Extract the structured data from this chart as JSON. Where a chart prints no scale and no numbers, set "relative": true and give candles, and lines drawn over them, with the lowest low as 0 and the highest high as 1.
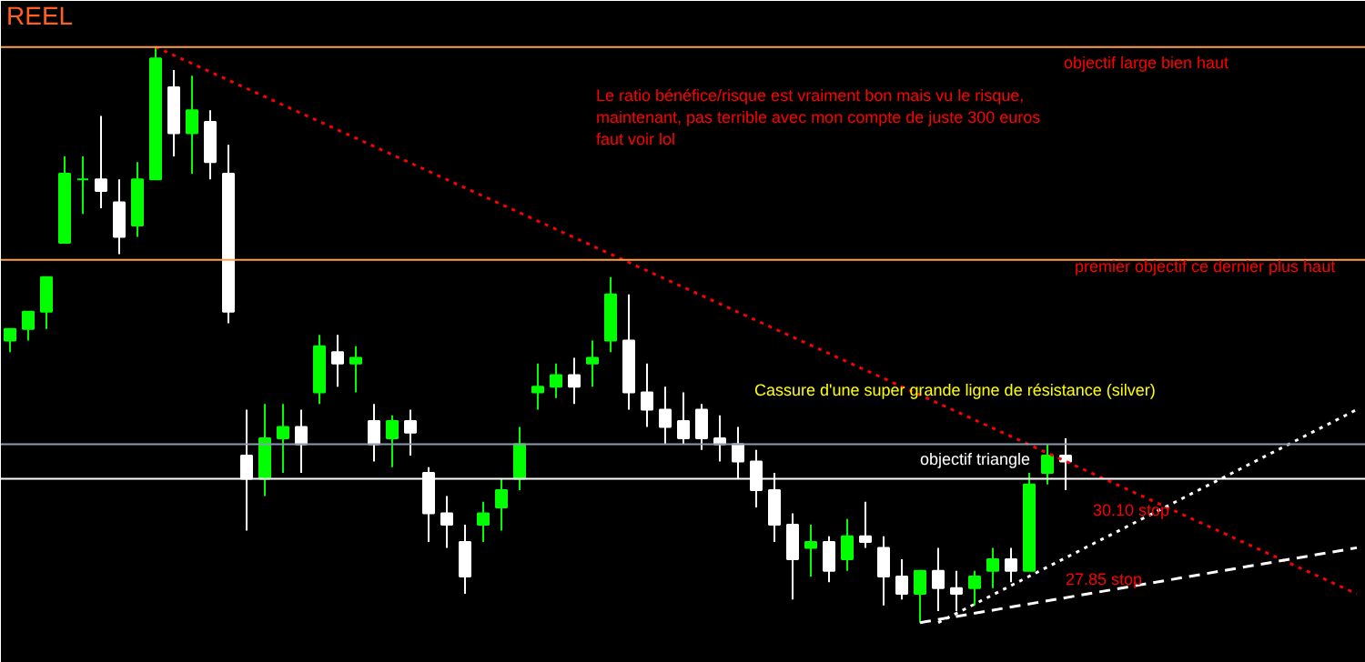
{
  "chart_data": {
    "type": "candlestick",
    "relative": true,
    "colors": [
      "#00ff00",
      "#00ff00",
      "#00ff00",
      "#00ff00",
      "#00ff00",
      "#ffffff",
      "#ffffff",
      "#00ff00",
      "#00ff00",
      "#ffffff",
      "#00ff00",
      "#ffffff",
      "#ffffff",
      "#ffffff",
      "#00ff00",
      "#00ff00",
      "#ffffff",
      "#00ff00",
      "#ffffff",
      "#00ff00",
      "#ffffff",
      "#00ff00",
      "#ffffff",
      "#ffffff",
      "#ffffff",
      "#ffffff",
      "#00ff00",
      "#00ff00",
      "#00ff00",
      "#00ff00",
      "#00ff00",
      "#ffffff",
      "#00ff00",
      "#00ff00",
      "#ffffff",
      "#ffffff",
      "#ffffff",
      "#ffffff",
      "#ffffff",
      "#ffffff",
      "#ffffff",
      "#ffffff",
      "#ffffff",
      "#ffffff",
      "#00ff00",
      "#ffffff",
      "#00ff00",
      "#ffffff",
      "#ffffff",
      "#ffffff",
      "#00ff00",
      "#ffffff",
      "#ffffff",
      "#00ff00",
      "#00ff00",
      "#ffffff",
      "#00ff00",
      "#00ff00",
      "#ffffff",
      null,
      null,
      null,
      null,
      null,
      null,
      null,
      null,
      null,
      null,
      null,
      null,
      null,
      null,
      null,
      null
    ],
    "categories": [
      null,
      null,
      null,
      null,
      null,
      null,
      null,
      null,
      null,
      null,
      null,
      null,
      null,
      null,
      null,
      null,
      null,
      null,
      null,
      null,
      null,
      null,
      null,
      null,
      null,
      null,
      null,
      null,
      null,
      null,
      null,
      null,
      null,
      null,
      null,
      null,
      null,
      null,
      null,
      null,
      null,
      null,
      null,
      null,
      null,
      null,
      null,
      null,
      null,
      null,
      null,
      null,
      null,
      null,
      null,
      null,
      null,
      null,
      null,
      null,
      null,
      null,
      null,
      null,
      null,
      null,
      null,
      null,
      null,
      null,
      null,
      null,
      null,
      null,
      null
    ],
    "ohlc": [
      [
        0.49,
        0.51,
        0.47,
        0.51
      ],
      [
        0.51,
        0.54,
        0.49,
        0.54
      ],
      [
        0.54,
        0.6,
        0.51,
        0.6
      ],
      [
        0.66,
        0.81,
        0.66,
        0.78
      ],
      [
        0.77,
        0.81,
        0.71,
        0.77
      ],
      [
        0.77,
        0.88,
        0.72,
        0.75
      ],
      [
        0.73,
        0.77,
        0.64,
        0.67
      ],
      [
        0.69,
        0.8,
        0.67,
        0.77
      ],
      [
        0.77,
        1.0,
        0.77,
        0.98
      ],
      [
        0.93,
        0.96,
        0.81,
        0.85
      ],
      [
        0.85,
        0.95,
        0.78,
        0.89
      ],
      [
        0.87,
        0.89,
        0.77,
        0.8
      ],
      [
        0.78,
        0.83,
        0.52,
        0.54
      ],
      [
        0.29,
        0.37,
        0.16,
        0.25
      ],
      [
        0.25,
        0.38,
        0.22,
        0.32
      ],
      [
        0.32,
        0.38,
        0.26,
        0.34
      ],
      [
        0.34,
        0.37,
        0.26,
        0.31
      ],
      [
        0.4,
        0.5,
        0.38,
        0.48
      ],
      [
        0.47,
        0.5,
        0.41,
        0.45
      ],
      [
        0.45,
        0.48,
        0.4,
        0.46
      ],
      [
        0.35,
        0.38,
        0.28,
        0.31
      ],
      [
        0.32,
        0.36,
        0.27,
        0.35
      ],
      [
        0.35,
        0.37,
        0.29,
        0.33
      ],
      [
        0.26,
        0.27,
        0.14,
        0.19
      ],
      [
        0.19,
        0.22,
        0.13,
        0.17
      ],
      [
        0.14,
        0.17,
        0.05,
        0.08
      ],
      [
        0.17,
        0.21,
        0.14,
        0.19
      ],
      [
        0.2,
        0.25,
        0.16,
        0.23
      ],
      [
        0.25,
        0.34,
        0.23,
        0.31
      ],
      [
        0.4,
        0.45,
        0.37,
        0.41
      ],
      [
        0.41,
        0.45,
        0.39,
        0.43
      ],
      [
        0.43,
        0.46,
        0.38,
        0.41
      ],
      [
        0.45,
        0.49,
        0.41,
        0.46
      ],
      [
        0.49,
        0.6,
        0.47,
        0.57
      ],
      [
        0.49,
        0.57,
        0.37,
        0.4
      ],
      [
        0.4,
        0.45,
        0.34,
        0.37
      ],
      [
        0.37,
        0.41,
        0.31,
        0.34
      ],
      [
        0.35,
        0.4,
        0.31,
        0.32
      ],
      [
        0.37,
        0.38,
        0.3,
        0.32
      ],
      [
        0.32,
        0.36,
        0.28,
        0.31
      ],
      [
        0.31,
        0.34,
        0.25,
        0.28
      ],
      [
        0.28,
        0.3,
        0.2,
        0.23
      ],
      [
        0.23,
        0.26,
        0.14,
        0.17
      ],
      [
        0.17,
        0.19,
        0.04,
        0.11
      ],
      [
        0.13,
        0.17,
        0.08,
        0.14
      ],
      [
        0.14,
        0.15,
        0.07,
        0.09
      ],
      [
        0.11,
        0.18,
        0.09,
        0.15
      ],
      [
        0.15,
        0.21,
        0.13,
        0.14
      ],
      [
        0.13,
        0.15,
        0.03,
        0.08
      ],
      [
        0.08,
        0.11,
        0.04,
        0.05
      ],
      [
        0.05,
        0.09,
        0,
        0.09
      ],
      [
        0.09,
        0.13,
        0.02,
        0.06
      ],
      [
        0.06,
        0.09,
        0.02,
        0.05
      ],
      [
        0.06,
        0.09,
        0.03,
        0.08
      ],
      [
        0.09,
        0.13,
        0.06,
        0.11
      ],
      [
        0.11,
        0.13,
        0.07,
        0.09
      ],
      [
        0.09,
        0.26,
        0.09,
        0.24
      ],
      [
        0.26,
        0.31,
        0.24,
        0.29
      ],
      [
        0.29,
        0.32,
        0.23,
        0.28
      ],
      null,
      null,
      null,
      null,
      null,
      null,
      null,
      null,
      null,
      null,
      null,
      null,
      null,
      null,
      null,
      null
    ],
    "series": [
      {
        "type": "line",
        "color": "#ff0000",
        "line_style": "dotted",
        "values": [
          null,
          null,
          null,
          null,
          null,
          null,
          null,
          null,
          1.0,
          null,
          null,
          null,
          null,
          null,
          null,
          null,
          null,
          null,
          null,
          null,
          null,
          null,
          null,
          null,
          null,
          null,
          null,
          null,
          null,
          null,
          null,
          null,
          null,
          null,
          null,
          null,
          null,
          null,
          null,
          null,
          null,
          null,
          null,
          null,
          null,
          null,
          null,
          null,
          null,
          null,
          null,
          null,
          null,
          null,
          null,
          null,
          null,
          null,
          null,
          null,
          null,
          null,
          null,
          null,
          null,
          null,
          null,
          null,
          null,
          null,
          null,
          null,
          null,
          null,
          0.05
        ]
      },
      {
        "type": "line",
        "color": "#ffffff",
        "line_style": "dotted",
        "values": [
          null,
          null,
          null,
          null,
          null,
          null,
          null,
          null,
          null,
          null,
          null,
          null,
          null,
          null,
          null,
          null,
          null,
          null,
          null,
          null,
          null,
          null,
          null,
          null,
          null,
          null,
          null,
          null,
          null,
          null,
          null,
          null,
          null,
          null,
          null,
          null,
          null,
          null,
          null,
          null,
          null,
          null,
          null,
          null,
          null,
          null,
          null,
          null,
          null,
          null,
          null,
          0.0,
          null,
          null,
          null,
          null,
          null,
          null,
          null,
          null,
          null,
          null,
          null,
          null,
          null,
          null,
          null,
          null,
          null,
          null,
          null,
          null,
          null,
          null,
          0.37
        ]
      },
      {
        "type": "line",
        "color": "#ffffff",
        "line_style": "dashed",
        "values": [
          null,
          null,
          null,
          null,
          null,
          null,
          null,
          null,
          null,
          null,
          null,
          null,
          null,
          null,
          null,
          null,
          null,
          null,
          null,
          null,
          null,
          null,
          null,
          null,
          null,
          null,
          null,
          null,
          null,
          null,
          null,
          null,
          null,
          null,
          null,
          null,
          null,
          null,
          null,
          null,
          null,
          null,
          null,
          null,
          null,
          null,
          null,
          null,
          null,
          null,
          0.0,
          null,
          null,
          null,
          null,
          null,
          null,
          null,
          null,
          null,
          null,
          null,
          null,
          null,
          null,
          null,
          null,
          null,
          null,
          null,
          null,
          null,
          null,
          null,
          0.13
        ]
      }
    ],
    "ref_lines": [
      {
        "axis": "y",
        "value": 1.0,
        "color": "#ff9f4f",
        "line_style": "solid"
      },
      {
        "axis": "y",
        "value": 0.63,
        "color": "#ff9f4f",
        "line_style": "solid"
      },
      {
        "axis": "y",
        "value": 0.31,
        "color": "#8c9cb0",
        "line_style": "solid"
      },
      {
        "axis": "y",
        "value": 0.25,
        "color": "#ffffff",
        "line_style": "solid"
      }
    ],
    "annotations": [
      "REEL",
      "Le ratio bénéfice/risque est vraiment bon mais vu le risque,\nmaintenant, pas terrible avec mon compte de juste 300 euros\nfaut voir lol",
      "objectif large bien haut",
      "premier objectif ce dernier plus haut",
      "Cassure d'une super grande ligne de résistance (silver)",
      "objectif triangle",
      "30.10 stop",
      "27.85 stop"
    ]
  }
}
